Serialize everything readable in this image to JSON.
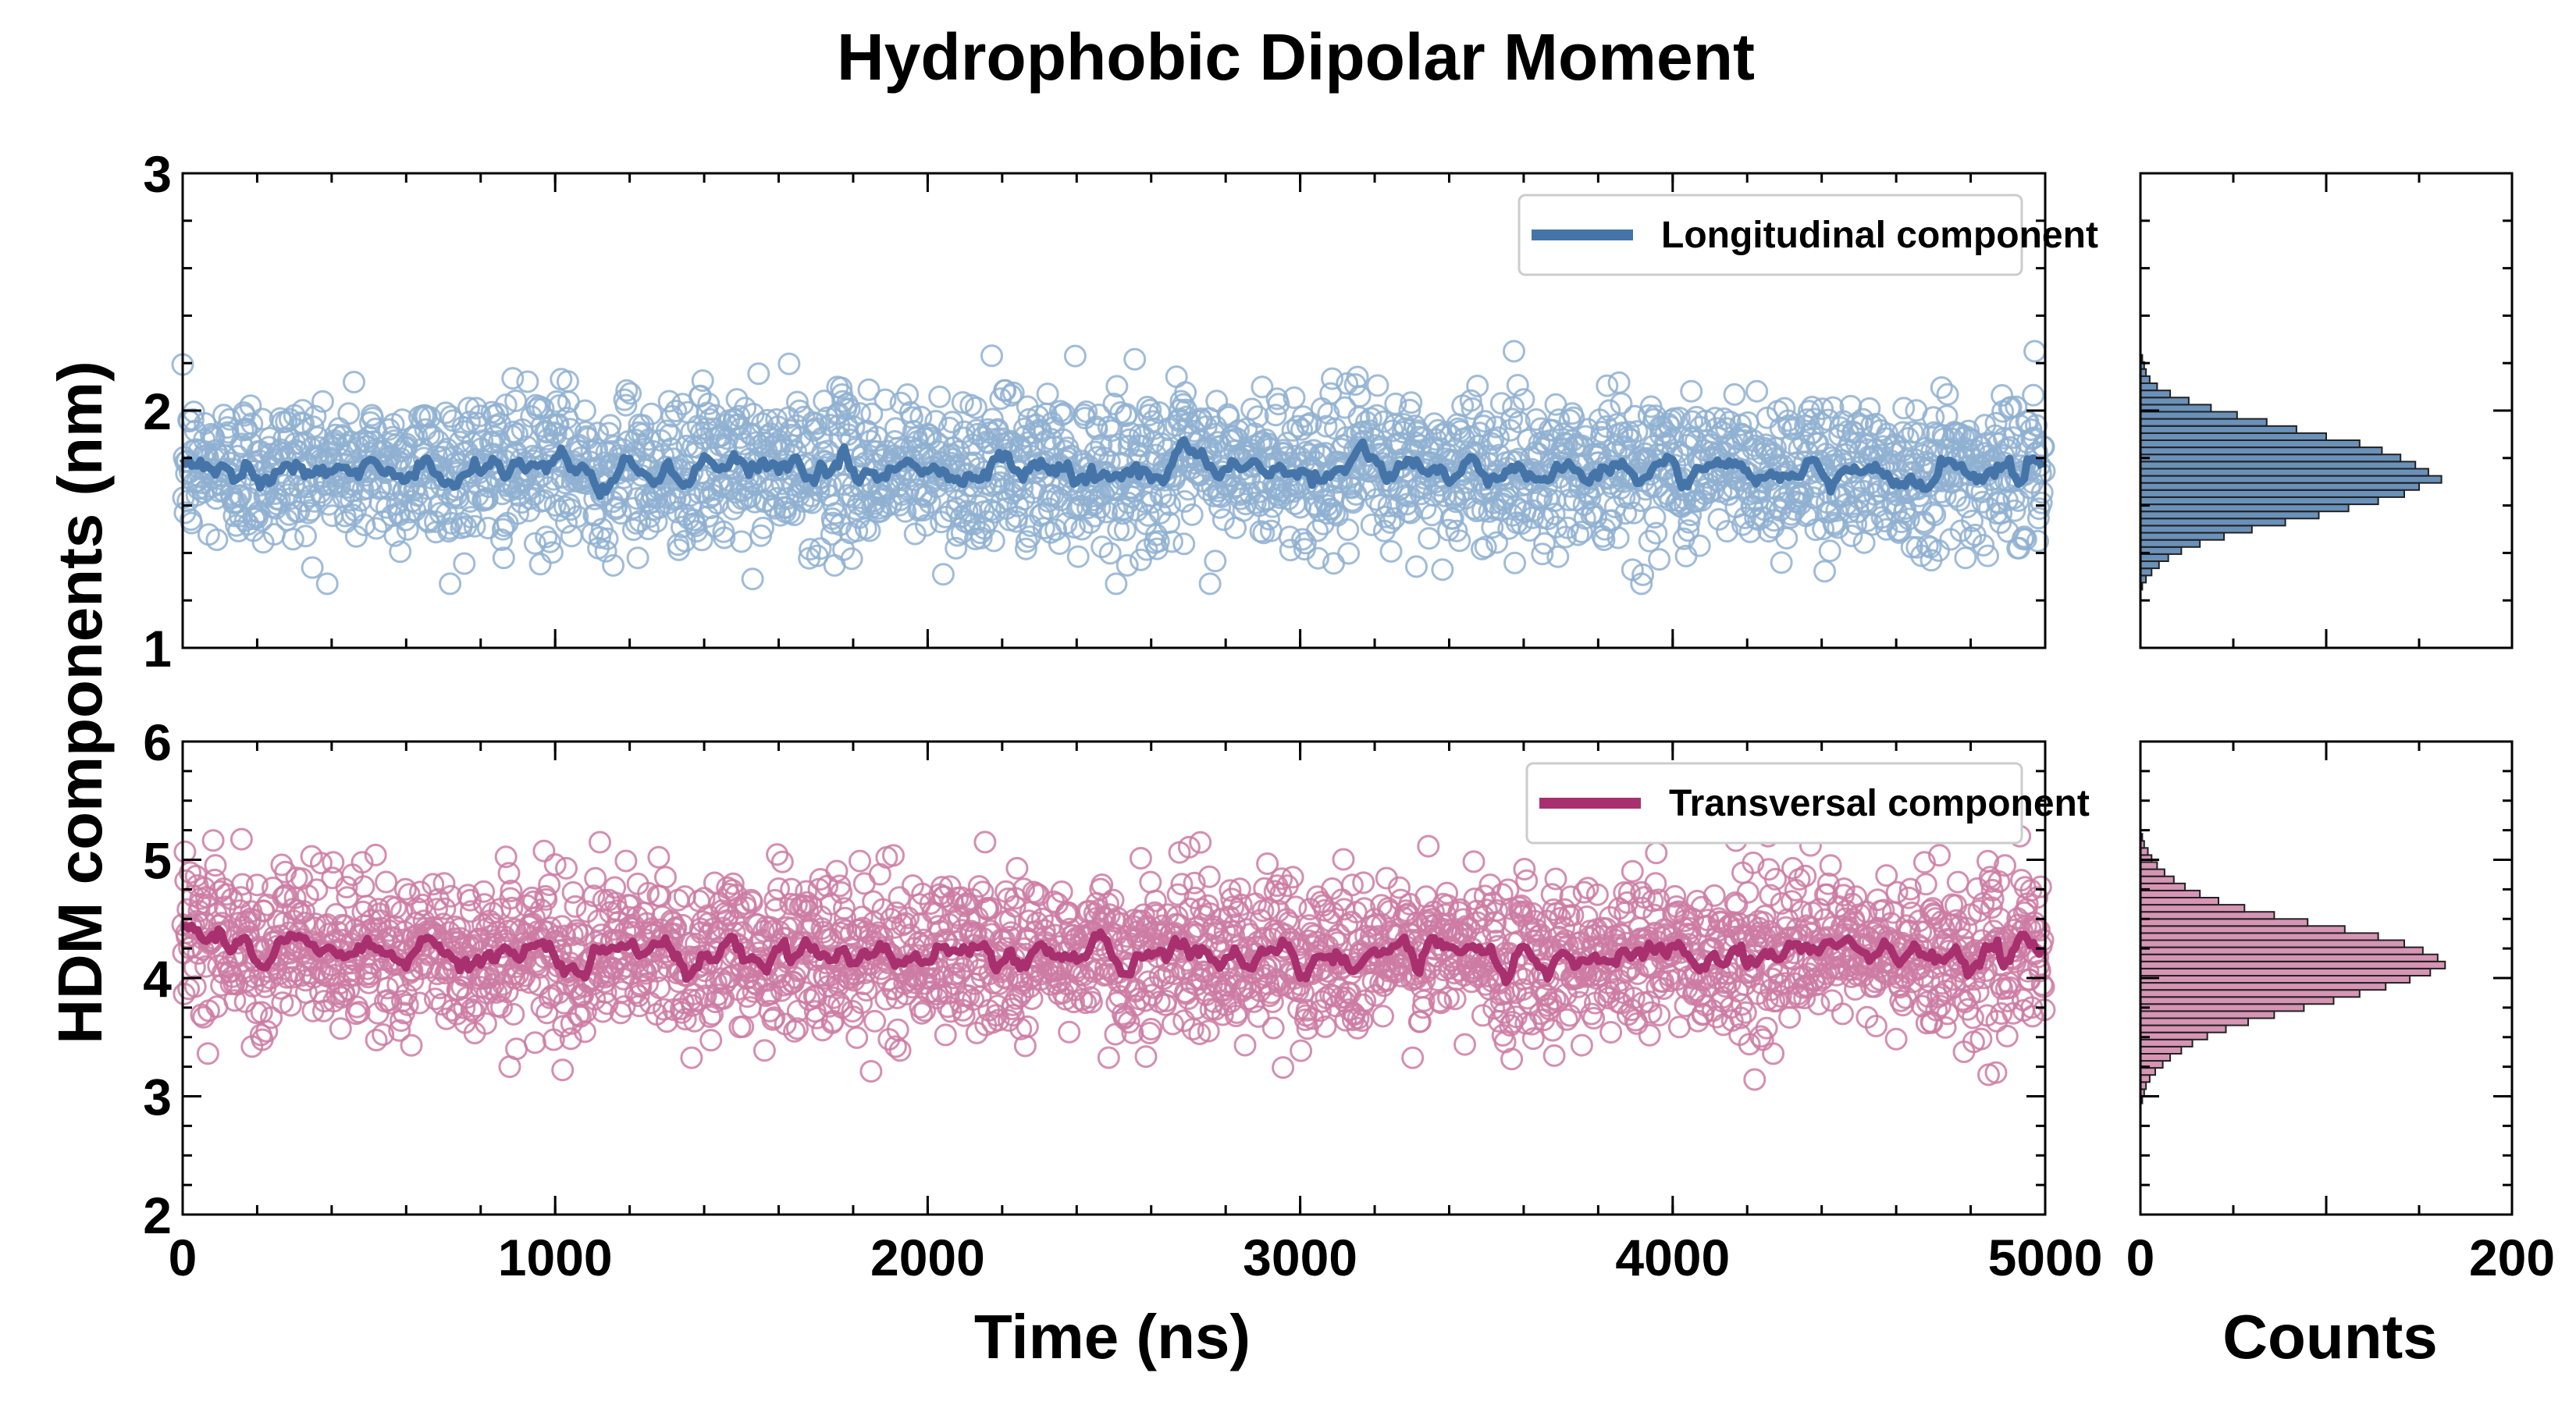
{
  "title": "Hydrophobic Dipolar Moment",
  "colors": {
    "longitudinal": "#4575a8",
    "longitudinal_marker": "#8fb0d1",
    "transversal": "#a8306f",
    "transversal_marker": "#cd7ba3",
    "hist_edge": "#222222",
    "legend_border": "#cccccc"
  },
  "chart_data": [
    {
      "panel": "top-time-series",
      "type": "scatter",
      "subtype": "scatter + running-average line",
      "ylabel": "HDM components (nm)",
      "xlim": [
        0,
        5000
      ],
      "ylim": [
        1,
        3
      ],
      "y_ticks": [
        1,
        2,
        3
      ],
      "x_ticks_labeled": false,
      "legend": {
        "position": "top-right",
        "entries": [
          "Longitudinal component"
        ]
      },
      "series": [
        {
          "name": "Longitudinal component",
          "style": "open circles + thick line",
          "mean": 1.75,
          "std": 0.16,
          "line_mean": 1.75,
          "approx_min": 1.27,
          "approx_max": 2.25
        }
      ]
    },
    {
      "panel": "bottom-time-series",
      "type": "scatter",
      "subtype": "scatter + running-average line",
      "xlabel": "Time (ns)",
      "xlim": [
        0,
        5000
      ],
      "ylim": [
        2,
        6
      ],
      "x_ticks": [
        0,
        1000,
        2000,
        3000,
        4000,
        5000
      ],
      "y_ticks": [
        2,
        3,
        4,
        5,
        6
      ],
      "legend": {
        "position": "top-right",
        "entries": [
          "Transversal component"
        ]
      },
      "series": [
        {
          "name": "Transversal component",
          "style": "open circles + thick line",
          "mean": 4.2,
          "std": 0.33,
          "line_mean": 4.2,
          "line_start": 4.55,
          "approx_min": 2.98,
          "approx_max": 5.2
        }
      ]
    },
    {
      "panel": "top-histogram",
      "type": "bar",
      "orientation": "horizontal",
      "xlim": [
        0,
        200
      ],
      "ylim": [
        1,
        3
      ],
      "bins": [
        {
          "y": 1.26,
          "count": 1
        },
        {
          "y": 1.29,
          "count": 3
        },
        {
          "y": 1.32,
          "count": 6
        },
        {
          "y": 1.35,
          "count": 10
        },
        {
          "y": 1.38,
          "count": 15
        },
        {
          "y": 1.41,
          "count": 22
        },
        {
          "y": 1.44,
          "count": 32
        },
        {
          "y": 1.47,
          "count": 45
        },
        {
          "y": 1.5,
          "count": 60
        },
        {
          "y": 1.53,
          "count": 78
        },
        {
          "y": 1.56,
          "count": 96
        },
        {
          "y": 1.59,
          "count": 112
        },
        {
          "y": 1.62,
          "count": 128
        },
        {
          "y": 1.65,
          "count": 142
        },
        {
          "y": 1.68,
          "count": 150
        },
        {
          "y": 1.71,
          "count": 162
        },
        {
          "y": 1.74,
          "count": 155
        },
        {
          "y": 1.77,
          "count": 148
        },
        {
          "y": 1.8,
          "count": 140
        },
        {
          "y": 1.83,
          "count": 130
        },
        {
          "y": 1.86,
          "count": 118
        },
        {
          "y": 1.89,
          "count": 100
        },
        {
          "y": 1.92,
          "count": 84
        },
        {
          "y": 1.95,
          "count": 68
        },
        {
          "y": 1.98,
          "count": 52
        },
        {
          "y": 2.01,
          "count": 38
        },
        {
          "y": 2.04,
          "count": 26
        },
        {
          "y": 2.07,
          "count": 16
        },
        {
          "y": 2.1,
          "count": 9
        },
        {
          "y": 2.13,
          "count": 5
        },
        {
          "y": 2.16,
          "count": 3
        },
        {
          "y": 2.19,
          "count": 2
        },
        {
          "y": 2.22,
          "count": 1
        }
      ],
      "bin_height": 0.03
    },
    {
      "panel": "bottom-histogram",
      "type": "bar",
      "orientation": "horizontal",
      "xlabel": "Counts",
      "xlim": [
        0,
        200
      ],
      "ylim": [
        2,
        6
      ],
      "x_ticks": [
        0,
        200
      ],
      "bins": [
        {
          "y": 2.97,
          "count": 1
        },
        {
          "y": 3.03,
          "count": 2
        },
        {
          "y": 3.09,
          "count": 3
        },
        {
          "y": 3.15,
          "count": 5
        },
        {
          "y": 3.21,
          "count": 8
        },
        {
          "y": 3.27,
          "count": 12
        },
        {
          "y": 3.33,
          "count": 16
        },
        {
          "y": 3.39,
          "count": 22
        },
        {
          "y": 3.45,
          "count": 28
        },
        {
          "y": 3.51,
          "count": 36
        },
        {
          "y": 3.57,
          "count": 46
        },
        {
          "y": 3.63,
          "count": 58
        },
        {
          "y": 3.69,
          "count": 72
        },
        {
          "y": 3.75,
          "count": 88
        },
        {
          "y": 3.81,
          "count": 104
        },
        {
          "y": 3.87,
          "count": 118
        },
        {
          "y": 3.93,
          "count": 132
        },
        {
          "y": 3.99,
          "count": 145
        },
        {
          "y": 4.05,
          "count": 156
        },
        {
          "y": 4.11,
          "count": 164
        },
        {
          "y": 4.17,
          "count": 160
        },
        {
          "y": 4.23,
          "count": 152
        },
        {
          "y": 4.29,
          "count": 142
        },
        {
          "y": 4.35,
          "count": 128
        },
        {
          "y": 4.41,
          "count": 110
        },
        {
          "y": 4.47,
          "count": 90
        },
        {
          "y": 4.53,
          "count": 72
        },
        {
          "y": 4.59,
          "count": 56
        },
        {
          "y": 4.65,
          "count": 42
        },
        {
          "y": 4.71,
          "count": 32
        },
        {
          "y": 4.77,
          "count": 24
        },
        {
          "y": 4.83,
          "count": 18
        },
        {
          "y": 4.89,
          "count": 13
        },
        {
          "y": 4.95,
          "count": 9
        },
        {
          "y": 5.01,
          "count": 6
        },
        {
          "y": 5.07,
          "count": 4
        },
        {
          "y": 5.13,
          "count": 2
        },
        {
          "y": 5.19,
          "count": 1
        }
      ],
      "bin_height": 0.06
    }
  ]
}
